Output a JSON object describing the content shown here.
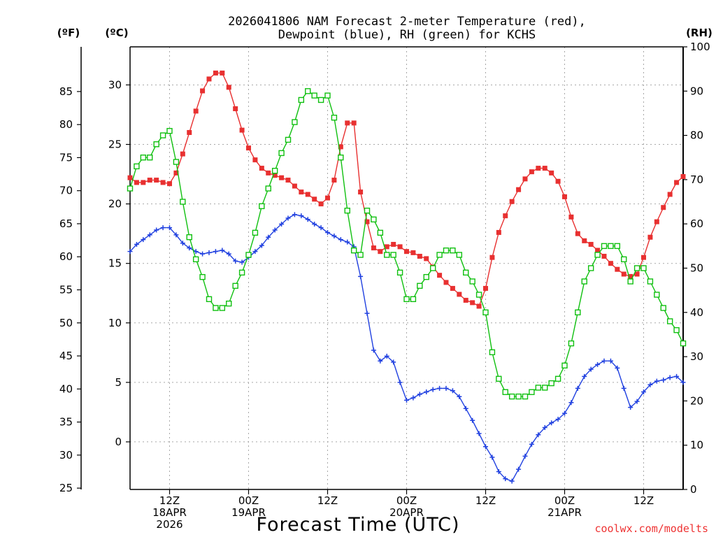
{
  "chart_data": {
    "type": "line",
    "title_line1": "2026041806 NAM Forecast 2-meter Temperature (red),",
    "title_line2": "Dewpoint (blue), RH (green) for KCHS",
    "xlabel": "Forecast Time (UTC)",
    "credit": "coolwx.com/modelts",
    "units": {
      "fahrenheit": "(ºF)",
      "celsius": "(ºC)",
      "rh": "(RH)"
    },
    "xlim_hours": [
      0,
      84
    ],
    "ylim_c": [
      -4,
      33.2
    ],
    "ylim_rh": [
      0,
      100
    ],
    "c_ticks": [
      0,
      5,
      10,
      15,
      20,
      25,
      30
    ],
    "f_ticks": [
      25,
      30,
      35,
      40,
      45,
      50,
      55,
      60,
      65,
      70,
      75,
      80,
      85
    ],
    "rh_ticks": [
      0,
      10,
      20,
      30,
      40,
      50,
      60,
      70,
      80,
      90,
      100
    ],
    "x_ticks": [
      {
        "hour": 6,
        "line1": "12Z",
        "line2": "18APR",
        "line3": "2026"
      },
      {
        "hour": 18,
        "line1": "00Z",
        "line2": "19APR",
        "line3": ""
      },
      {
        "hour": 30,
        "line1": "12Z",
        "line2": "",
        "line3": ""
      },
      {
        "hour": 42,
        "line1": "00Z",
        "line2": "20APR",
        "line3": ""
      },
      {
        "hour": 54,
        "line1": "12Z",
        "line2": "",
        "line3": ""
      },
      {
        "hour": 66,
        "line1": "00Z",
        "line2": "21APR",
        "line3": ""
      },
      {
        "hour": 78,
        "line1": "12Z",
        "line2": "",
        "line3": ""
      }
    ],
    "series": [
      {
        "name": "2-meter Temperature",
        "unit": "C",
        "color": "#e83030",
        "marker": "filled-square",
        "hours": [
          0,
          1,
          2,
          3,
          4,
          5,
          6,
          7,
          8,
          9,
          10,
          11,
          12,
          13,
          14,
          15,
          16,
          17,
          18,
          19,
          20,
          21,
          22,
          23,
          24,
          25,
          26,
          27,
          28,
          29,
          30,
          31,
          32,
          33,
          34,
          35,
          36,
          37,
          38,
          39,
          40,
          41,
          42,
          43,
          44,
          45,
          46,
          47,
          48,
          49,
          50,
          51,
          52,
          53,
          54,
          55,
          56,
          57,
          58,
          59,
          60,
          61,
          62,
          63,
          64,
          65,
          66,
          67,
          68,
          69,
          70,
          71,
          72,
          73,
          74,
          75,
          76,
          77,
          78,
          79,
          80,
          81,
          82,
          83,
          84
        ],
        "values": [
          22.2,
          21.8,
          21.8,
          22.0,
          22.0,
          21.8,
          21.7,
          22.6,
          24.2,
          26.0,
          27.8,
          29.5,
          30.5,
          31.0,
          31.0,
          29.8,
          28.0,
          26.2,
          24.7,
          23.7,
          23.0,
          22.6,
          22.4,
          22.2,
          22.0,
          21.5,
          21.0,
          20.8,
          20.4,
          20.0,
          20.5,
          22.0,
          24.8,
          26.8,
          26.8,
          21.0,
          18.5,
          16.3,
          16.0,
          16.4,
          16.6,
          16.4,
          16.0,
          15.9,
          15.6,
          15.4,
          14.7,
          14.0,
          13.4,
          12.9,
          12.4,
          11.9,
          11.7,
          11.4,
          12.9,
          15.5,
          17.6,
          19.0,
          20.2,
          21.2,
          22.1,
          22.7,
          23.0,
          23.0,
          22.6,
          21.9,
          20.6,
          18.9,
          17.5,
          16.9,
          16.6,
          16.1,
          15.6,
          15.0,
          14.5,
          14.1,
          13.9,
          14.1,
          15.5,
          17.2,
          18.5,
          19.7,
          20.8,
          21.8,
          22.3
        ]
      },
      {
        "name": "Dewpoint",
        "unit": "C",
        "color": "#2040e0",
        "marker": "plus",
        "hours": [
          0,
          1,
          2,
          3,
          4,
          5,
          6,
          7,
          8,
          9,
          10,
          11,
          12,
          13,
          14,
          15,
          16,
          17,
          18,
          19,
          20,
          21,
          22,
          23,
          24,
          25,
          26,
          27,
          28,
          29,
          30,
          31,
          32,
          33,
          34,
          35,
          36,
          37,
          38,
          39,
          40,
          41,
          42,
          43,
          44,
          45,
          46,
          47,
          48,
          49,
          50,
          51,
          52,
          53,
          54,
          55,
          56,
          57,
          58,
          59,
          60,
          61,
          62,
          63,
          64,
          65,
          66,
          67,
          68,
          69,
          70,
          71,
          72,
          73,
          74,
          75,
          76,
          77,
          78,
          79,
          80,
          81,
          82,
          83,
          84
        ],
        "values": [
          16.0,
          16.6,
          17.0,
          17.4,
          17.8,
          18.0,
          18.0,
          17.4,
          16.7,
          16.3,
          16.0,
          15.8,
          15.9,
          16.0,
          16.1,
          15.8,
          15.2,
          15.1,
          15.5,
          16.0,
          16.5,
          17.2,
          17.8,
          18.3,
          18.8,
          19.1,
          19.0,
          18.7,
          18.3,
          18.0,
          17.6,
          17.3,
          17.0,
          16.8,
          16.4,
          13.9,
          10.8,
          7.7,
          6.8,
          7.2,
          6.7,
          5.0,
          3.5,
          3.7,
          4.0,
          4.2,
          4.4,
          4.5,
          4.5,
          4.3,
          3.8,
          2.8,
          1.8,
          0.7,
          -0.4,
          -1.3,
          -2.5,
          -3.1,
          -3.3,
          -2.3,
          -1.2,
          -0.2,
          0.6,
          1.2,
          1.6,
          1.9,
          2.4,
          3.3,
          4.5,
          5.5,
          6.1,
          6.5,
          6.8,
          6.8,
          6.2,
          4.5,
          2.9,
          3.4,
          4.2,
          4.8,
          5.1,
          5.2,
          5.4,
          5.5,
          5.0
        ]
      },
      {
        "name": "RH",
        "unit": "%",
        "color": "#10c010",
        "marker": "hollow-square",
        "hours": [
          0,
          1,
          2,
          3,
          4,
          5,
          6,
          7,
          8,
          9,
          10,
          11,
          12,
          13,
          14,
          15,
          16,
          17,
          18,
          19,
          20,
          21,
          22,
          23,
          24,
          25,
          26,
          27,
          28,
          29,
          30,
          31,
          32,
          33,
          34,
          35,
          36,
          37,
          38,
          39,
          40,
          41,
          42,
          43,
          44,
          45,
          46,
          47,
          48,
          49,
          50,
          51,
          52,
          53,
          54,
          55,
          56,
          57,
          58,
          59,
          60,
          61,
          62,
          63,
          64,
          65,
          66,
          67,
          68,
          69,
          70,
          71,
          72,
          73,
          74,
          75,
          76,
          77,
          78,
          79,
          80,
          81,
          82,
          83,
          84
        ],
        "values": [
          68,
          73,
          75,
          75,
          78,
          80,
          81,
          74,
          65,
          57,
          52,
          48,
          43,
          41,
          41,
          42,
          46,
          49,
          53,
          58,
          64,
          68,
          72,
          76,
          79,
          83,
          88,
          90,
          89,
          88,
          89,
          84,
          75,
          63,
          54,
          53,
          63,
          61,
          58,
          53,
          53,
          49,
          43,
          43,
          46,
          48,
          50,
          53,
          54,
          54,
          53,
          49,
          47,
          44,
          40,
          31,
          25,
          22,
          21,
          21,
          21,
          22,
          23,
          23,
          24,
          25,
          28,
          33,
          40,
          47,
          50,
          53,
          55,
          55,
          55,
          52,
          47,
          50,
          50,
          47,
          44,
          41,
          38,
          36,
          33
        ]
      }
    ]
  }
}
